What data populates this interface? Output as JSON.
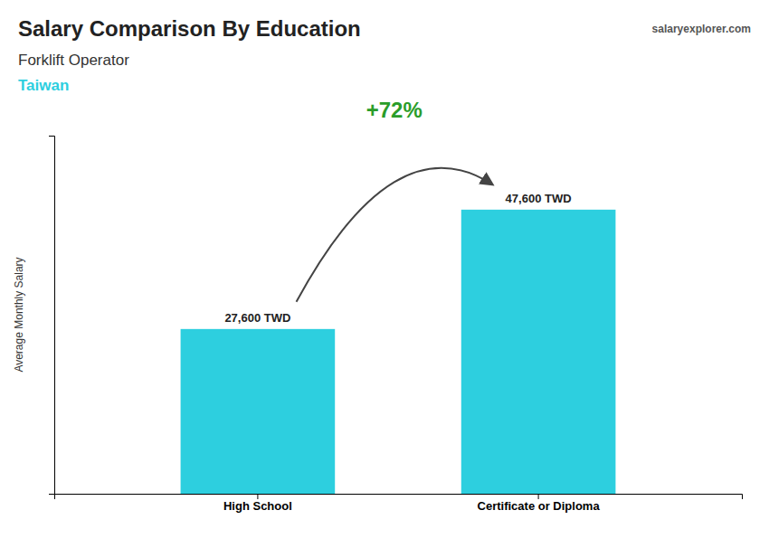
{
  "chart_data": {
    "type": "bar",
    "title": "Salary Comparison By Education",
    "subtitle": "Forklift Operator",
    "annotations": [
      "Taiwan",
      "salaryexplorer.com",
      "+72%"
    ],
    "categories": [
      "High School",
      "Certificate or Diploma"
    ],
    "values": [
      27600,
      47600
    ],
    "value_labels": [
      "27,600 TWD",
      "47,600 TWD"
    ],
    "data_labels": true,
    "color": "#2DCFDF",
    "ylabel": "Average Monthly Salary",
    "ylim": [
      0,
      60000
    ],
    "tick_labels": "x",
    "grid": false
  }
}
